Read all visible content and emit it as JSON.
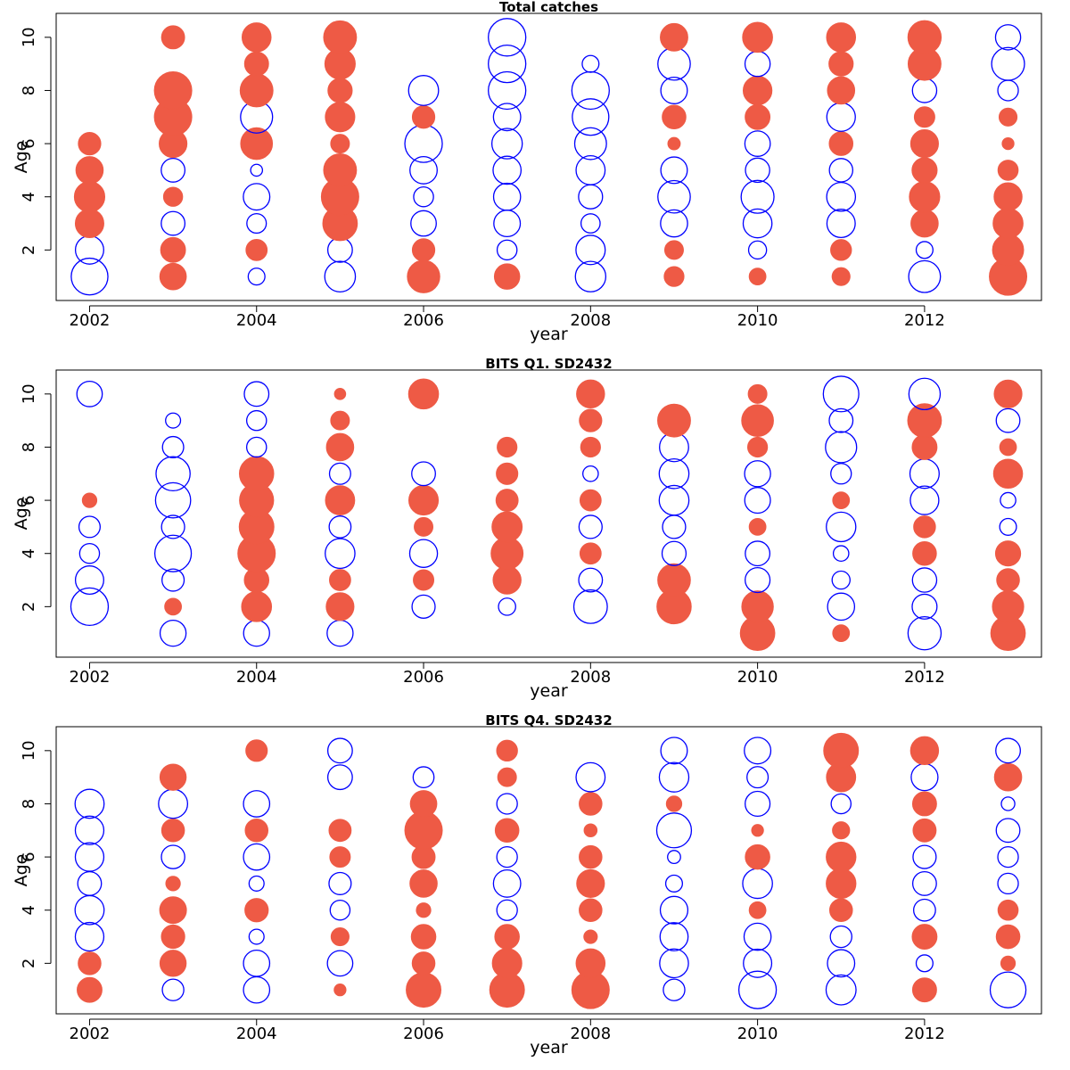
{
  "chart_data": [
    {
      "type": "scatter",
      "title": "Total catches",
      "xlabel": "year",
      "ylabel": "Age",
      "xlim": [
        2001.6,
        2013.4
      ],
      "ylim": [
        0.1,
        10.9
      ],
      "xticks": [
        2002,
        2004,
        2006,
        2008,
        2010,
        2012
      ],
      "yticks": [
        2,
        4,
        6,
        8,
        10
      ],
      "years": [
        2002,
        2003,
        2004,
        2005,
        2006,
        2007,
        2008,
        2009,
        2010,
        2011,
        2012,
        2013
      ],
      "ages": [
        1,
        2,
        3,
        4,
        5,
        6,
        7,
        8,
        9,
        10
      ],
      "encoding": "bubble area proportional to |residual|; filled = positive, open = negative",
      "colors": {
        "positive": "#EE5A45",
        "negative": "#0000FF"
      },
      "values": [
        [
          -0.96,
          -0.57,
          0.58,
          0.66,
          0.53,
          0.36,
          null,
          null,
          null,
          null
        ],
        [
          0.5,
          0.44,
          -0.4,
          0.26,
          -0.4,
          0.55,
          1.0,
          1.0,
          null,
          0.38
        ],
        [
          -0.2,
          0.32,
          -0.27,
          -0.5,
          -0.1,
          0.72,
          -0.73,
          0.77,
          0.41,
          0.6
        ],
        [
          -0.67,
          -0.43,
          0.85,
          1.0,
          0.77,
          0.25,
          0.62,
          0.42,
          0.66,
          0.77
        ],
        [
          0.75,
          0.36,
          -0.46,
          -0.28,
          -0.53,
          -1.0,
          0.36,
          -0.64,
          null,
          null
        ],
        [
          0.46,
          -0.28,
          -0.5,
          -0.52,
          -0.56,
          -0.66,
          -0.53,
          -1.0,
          -1.0,
          -1.0
        ],
        [
          -0.66,
          -0.61,
          -0.26,
          -0.41,
          -0.6,
          -0.72,
          -0.95,
          -1.0,
          -0.2,
          null
        ],
        [
          0.28,
          0.25,
          -0.52,
          -0.75,
          -0.5,
          0.11,
          0.4,
          -0.5,
          -0.75,
          0.54
        ],
        [
          0.2,
          -0.23,
          -0.59,
          -0.77,
          -0.42,
          -0.46,
          0.44,
          0.59,
          -0.45,
          0.64
        ],
        [
          0.23,
          0.31,
          -0.57,
          -0.59,
          -0.39,
          0.4,
          -0.58,
          0.53,
          0.42,
          0.6
        ],
        [
          -0.72,
          -0.2,
          0.53,
          0.66,
          0.45,
          0.55,
          0.3,
          -0.42,
          0.77,
          0.79
        ],
        [
          1.0,
          0.69,
          0.64,
          0.56,
          0.29,
          0.1,
          0.23,
          -0.3,
          -0.77,
          -0.45
        ]
      ]
    },
    {
      "type": "scatter",
      "title": "BITS Q1. SD2432",
      "xlabel": "year",
      "ylabel": "Age",
      "xlim": [
        2001.6,
        2013.4
      ],
      "ylim": [
        0.1,
        10.9
      ],
      "xticks": [
        2002,
        2004,
        2006,
        2008,
        2010,
        2012
      ],
      "yticks": [
        2,
        4,
        6,
        8,
        10
      ],
      "years": [
        2002,
        2003,
        2004,
        2005,
        2006,
        2007,
        2008,
        2009,
        2010,
        2011,
        2012,
        2013
      ],
      "ages": [
        1,
        2,
        3,
        4,
        5,
        6,
        7,
        8,
        9,
        10
      ],
      "encoding": "bubble area proportional to |residual|; filled = positive, open = negative",
      "colors": {
        "positive": "#EE5A45",
        "negative": "#0000FF"
      },
      "values": [
        [
          null,
          -1.0,
          -0.57,
          -0.28,
          -0.32,
          0.15,
          null,
          null,
          null,
          -0.46
        ],
        [
          -0.48,
          0.2,
          -0.35,
          -0.95,
          -0.38,
          -0.88,
          -0.83,
          -0.32,
          -0.16,
          null
        ],
        [
          -0.48,
          0.64,
          0.43,
          1.0,
          0.86,
          0.83,
          0.84,
          -0.28,
          -0.28,
          -0.43
        ],
        [
          -0.48,
          0.55,
          0.32,
          -0.63,
          -0.34,
          0.61,
          -0.32,
          0.53,
          0.25,
          0.09
        ],
        [
          null,
          -0.38,
          0.3,
          -0.55,
          0.25,
          0.62,
          -0.4,
          null,
          null,
          0.64
        ],
        [
          null,
          -0.21,
          0.56,
          0.73,
          0.65,
          0.35,
          0.33,
          0.28,
          null,
          null
        ],
        [
          null,
          -0.8,
          -0.4,
          0.32,
          -0.38,
          0.32,
          -0.17,
          0.28,
          0.36,
          0.56
        ],
        [
          null,
          0.84,
          0.76,
          -0.41,
          -0.38,
          -0.63,
          -0.63,
          -0.6,
          0.77,
          null
        ],
        [
          0.85,
          0.71,
          -0.44,
          -0.43,
          0.2,
          -0.47,
          -0.48,
          0.28,
          0.72,
          0.25
        ],
        [
          0.2,
          -0.52,
          -0.23,
          -0.17,
          -0.62,
          0.2,
          -0.3,
          -0.69,
          -0.4,
          -0.9
        ],
        [
          -0.78,
          -0.44,
          -0.42,
          0.4,
          0.34,
          -0.58,
          -0.61,
          0.44,
          0.81,
          -0.7
        ],
        [
          0.85,
          0.7,
          0.37,
          0.45,
          -0.2,
          -0.17,
          0.6,
          0.2,
          -0.4,
          0.55
        ]
      ]
    },
    {
      "type": "scatter",
      "title": "BITS Q4. SD2432",
      "xlabel": "year",
      "ylabel": "Age",
      "xlim": [
        2001.6,
        2013.4
      ],
      "ylim": [
        0.1,
        10.9
      ],
      "xticks": [
        2002,
        2004,
        2006,
        2008,
        2010,
        2012
      ],
      "yticks": [
        2,
        4,
        6,
        8,
        10
      ],
      "years": [
        2002,
        2003,
        2004,
        2005,
        2006,
        2007,
        2008,
        2009,
        2010,
        2011,
        2012,
        2013
      ],
      "ages": [
        1,
        2,
        3,
        4,
        5,
        6,
        7,
        8,
        9,
        10
      ],
      "encoding": "bubble area proportional to |residual|; filled = positive, open = negative",
      "colors": {
        "positive": "#EE5A45",
        "negative": "#0000FF"
      },
      "values": [
        [
          0.44,
          0.37,
          -0.58,
          -0.6,
          -0.4,
          -0.58,
          -0.58,
          -0.6,
          null,
          null
        ],
        [
          -0.33,
          0.49,
          0.39,
          0.51,
          0.15,
          -0.39,
          0.37,
          -0.6,
          0.49,
          null
        ],
        [
          -0.49,
          -0.49,
          -0.16,
          0.39,
          -0.16,
          -0.49,
          0.37,
          -0.49,
          null,
          0.33
        ],
        [
          0.1,
          -0.46,
          0.23,
          -0.28,
          -0.35,
          0.3,
          0.35,
          null,
          -0.43,
          -0.43
        ],
        [
          0.86,
          0.37,
          0.43,
          0.15,
          0.53,
          0.38,
          1.0,
          0.5,
          -0.31,
          null
        ],
        [
          0.86,
          0.62,
          0.43,
          -0.3,
          -0.53,
          -0.3,
          0.4,
          -0.3,
          0.25,
          0.31
        ],
        [
          1.0,
          0.6,
          0.13,
          0.37,
          0.55,
          0.37,
          0.12,
          0.37,
          -0.6,
          null
        ],
        [
          -0.33,
          -0.59,
          -0.56,
          -0.54,
          -0.2,
          -0.12,
          -0.86,
          0.17,
          -0.62,
          -0.5
        ],
        [
          -1.0,
          -0.57,
          -0.52,
          0.2,
          -0.63,
          0.43,
          0.1,
          -0.44,
          -0.32,
          -0.5
        ],
        [
          -0.64,
          -0.53,
          -0.33,
          0.37,
          0.63,
          0.63,
          0.21,
          -0.28,
          0.61,
          0.86
        ],
        [
          0.41,
          -0.2,
          0.44,
          -0.34,
          -0.4,
          -0.38,
          0.38,
          0.41,
          -0.51,
          0.56
        ],
        [
          -0.91,
          0.15,
          0.4,
          0.29,
          -0.3,
          -0.3,
          -0.4,
          -0.13,
          0.53,
          -0.43
        ]
      ]
    }
  ]
}
